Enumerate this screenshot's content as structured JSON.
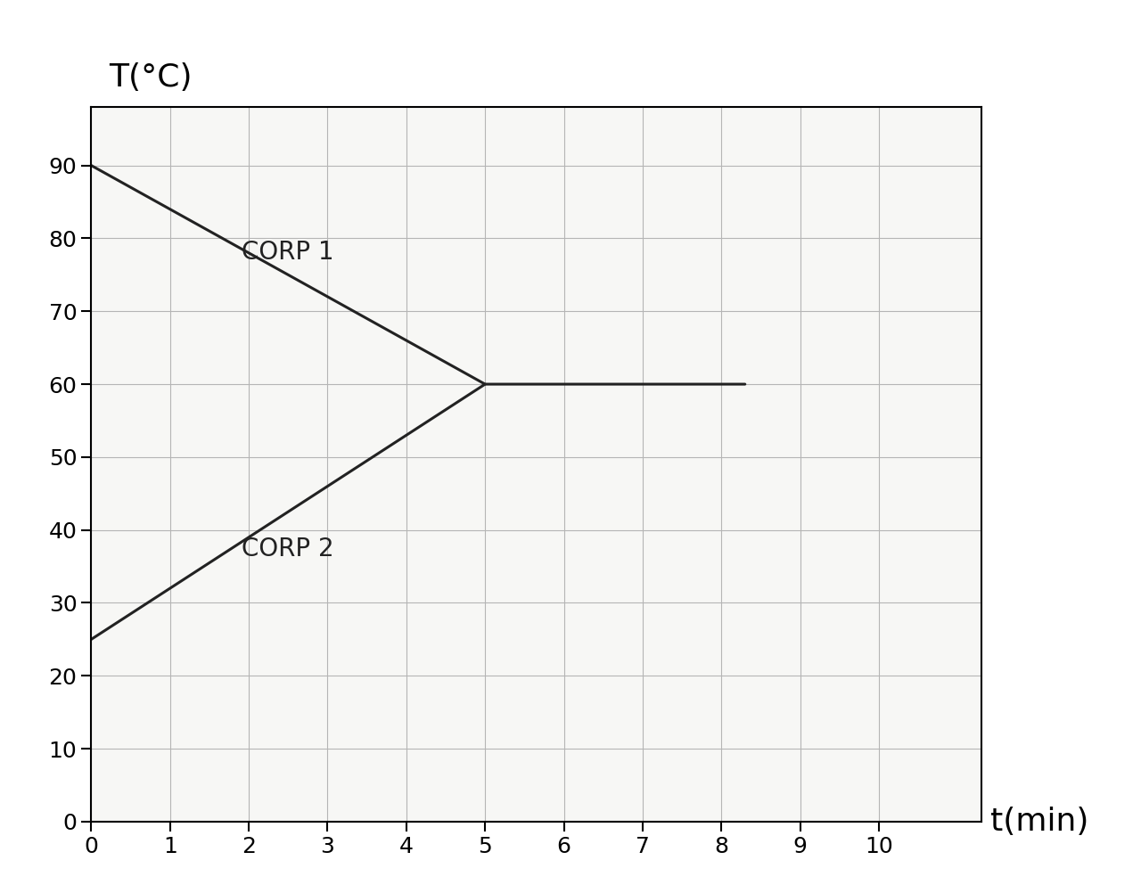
{
  "chart_data": {
    "type": "line",
    "x_label": "t(min)",
    "y_label": "T(°C)",
    "series": [
      {
        "name": "CORP 1",
        "color": "#222222",
        "x": [
          0,
          5,
          8.3
        ],
        "values": [
          90,
          60,
          60
        ]
      },
      {
        "name": "CORP 2",
        "color": "#222222",
        "x": [
          0,
          5
        ],
        "values": [
          25,
          60
        ]
      }
    ],
    "xlim": [
      0,
      11.3
    ],
    "ylim": [
      0,
      98
    ],
    "xticks": [
      0,
      1,
      2,
      3,
      4,
      5,
      6,
      7,
      8,
      9,
      10
    ],
    "yticks": [
      0,
      10,
      20,
      30,
      40,
      50,
      60,
      70,
      80,
      90
    ],
    "grid": true
  }
}
